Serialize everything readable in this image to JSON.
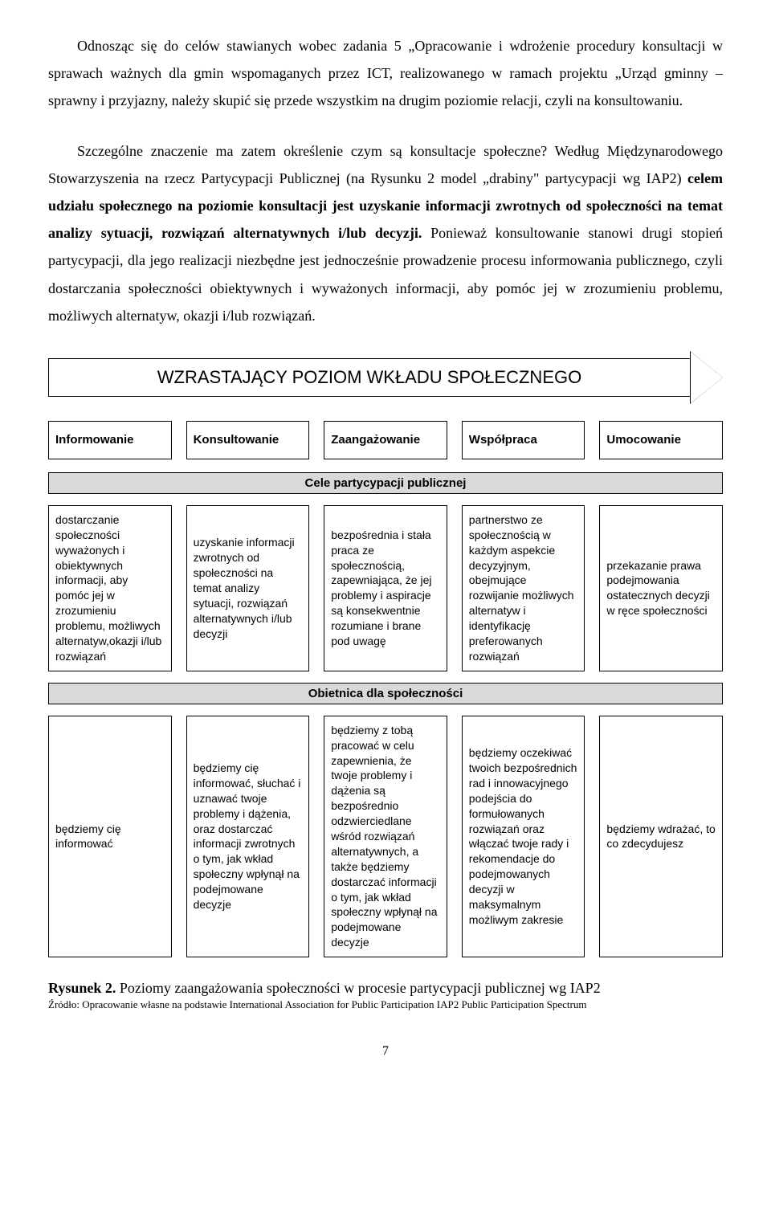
{
  "paragraph": {
    "p1": "Odnosząc się do celów stawianych wobec zadania 5 „Opracowanie i wdrożenie procedury konsultacji w sprawach ważnych dla gmin wspomaganych przez ICT, realizowanego w ramach projektu „Urząd gminny – sprawny i przyjazny, należy skupić się przede wszystkim na drugim poziomie relacji, czyli na konsultowaniu.",
    "p2": "Szczególne znaczenie ma zatem określenie czym są konsultacje społeczne? Według Międzynarodowego Stowarzyszenia na rzecz Partycypacji Publicznej (na Rysunku 2 model „drabiny\" partycypacji wg IAP2) ",
    "p3_bold": "celem udziału społecznego na poziomie konsultacji jest uzyskanie informacji zwrotnych od społeczności na temat analizy sytuacji, rozwiązań alternatywnych i/lub decyzji.",
    "p4": " Ponieważ konsultowanie stanowi drugi stopień partycypacji, dla jego realizacji niezbędne jest jednocześnie prowadzenie procesu informowania publicznego, czyli dostarczania społeczności obiektywnych i wyważonych informacji, aby pomóc jej w zrozumieniu problemu, możliwych alternatyw, okazji i/lub rozwiązań."
  },
  "arrow_label": "WZRASTAJĄCY POZIOM WKŁADU SPOŁECZNEGO",
  "headers": [
    "Informowanie",
    "Konsultowanie",
    "Zaangażowanie",
    "Współpraca",
    "Umocowanie"
  ],
  "section1": "Cele partycypacji publicznej",
  "goals": [
    "dostarczanie społeczności wyważonych i obiektywnych informacji, aby pomóc jej w zrozumieniu problemu, możliwych alternatyw,okazji i/lub rozwiązań",
    "uzyskanie informacji zwrotnych od społeczności na temat analizy sytuacji, rozwiązań alternatywnych i/lub decyzji",
    "bezpośrednia i stała praca ze społecznością, zapewniająca, że jej problemy i aspiracje są konsekwentnie rozumiane i brane pod uwagę",
    "partnerstwo ze społecznością w każdym aspekcie decyzyjnym, obejmujące rozwijanie możliwych alternatyw i identyfikację preferowanych rozwiązań",
    "przekazanie prawa podejmowania ostatecznych decyzji w ręce społeczności"
  ],
  "section2": "Obietnica dla społeczności",
  "promises": [
    "będziemy cię informować",
    "będziemy cię informować, słuchać i uznawać twoje problemy i dążenia, oraz dostarczać informacji zwrotnych o tym, jak wkład społeczny wpłynął na podejmowane decyzje",
    "będziemy z tobą pracować w celu zapewnienia, że twoje problemy i dążenia są bezpośrednio odzwierciedlane wśród rozwiązań alternatywnych, a także  będziemy dostarczać informacji o tym, jak wkład społeczny wpłynął na podejmowane decyzje",
    "będziemy oczekiwać twoich bezpośrednich rad i innowacyjnego podejścia do formułowanych rozwiązań oraz włączać twoje rady i rekomendacje do podejmowanych decyzji w maksymalnym możliwym zakresie",
    "będziemy wdrażać, to co zdecydujesz"
  ],
  "caption_bold": "Rysunek 2.",
  "caption_rest": " Poziomy zaangażowania społeczności w procesie partycypacji publicznej wg IAP2",
  "source": "Źródło: Opracowanie własne na podstawie International Association for Public Participation IAP2 Public Participation Spectrum",
  "page_number": "7"
}
